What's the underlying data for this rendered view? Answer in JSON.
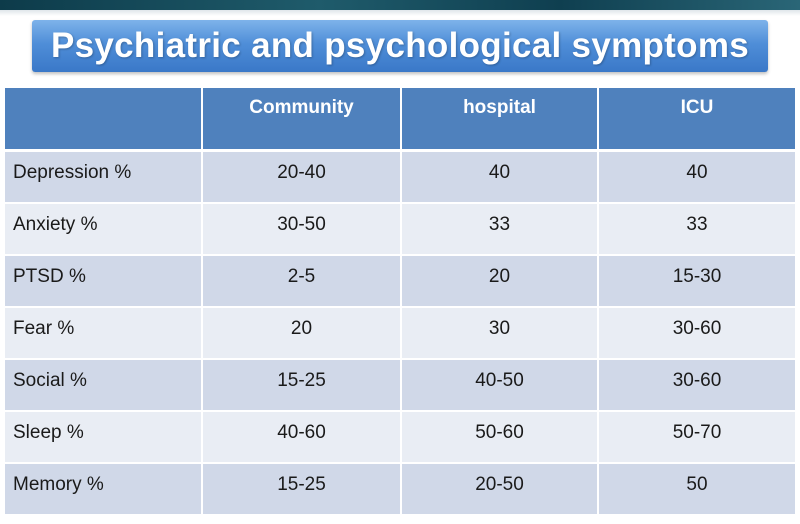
{
  "slide": {
    "title": "Psychiatric and psychological symptoms"
  },
  "table": {
    "headers": [
      "",
      "Community",
      "hospital",
      "ICU"
    ],
    "rows": [
      [
        "Depression %",
        "20-40",
        "40",
        "40"
      ],
      [
        "Anxiety %",
        "30-50",
        "33",
        "33"
      ],
      [
        "PTSD %",
        "2-5",
        "20",
        "15-30"
      ],
      [
        "Fear %",
        "20",
        "30",
        "30-60"
      ],
      [
        "Social %",
        "15-25",
        "40-50",
        "30-60"
      ],
      [
        "Sleep %",
        "40-60",
        "50-60",
        "50-70"
      ],
      [
        "Memory %",
        "15-25",
        "20-50",
        "50"
      ]
    ]
  },
  "colors": {
    "title_bar": "#4f8ed8",
    "header_row": "#4f81bd",
    "row_band_dark": "#d0d8e8",
    "row_band_light": "#e9edf4",
    "top_strip": "#0d3b4a"
  }
}
